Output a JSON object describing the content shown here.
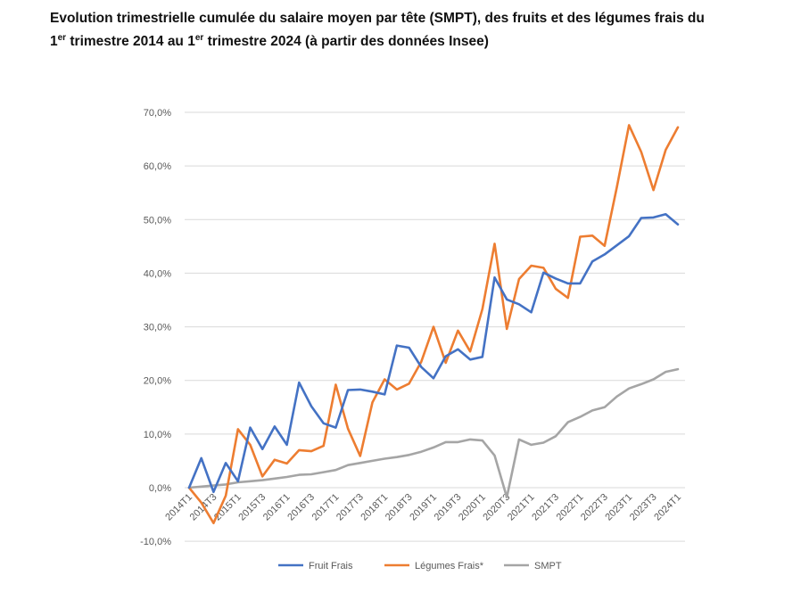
{
  "title": {
    "part1": "Evolution trimestrielle cumulée du salaire moyen par tête (SMPT), des fruits et des légumes frais du",
    "part2_1": "1",
    "sup1": "er",
    "part2_2": " trimestre 2014 au 1",
    "sup2": "er",
    "part2_3": " trimestre 2024 (à partir des données Insee)"
  },
  "chart_data": {
    "type": "line",
    "ylim": [
      -10,
      70
    ],
    "y_ticks": [
      "-10,0%",
      "0,0%",
      "10,0%",
      "20,0%",
      "30,0%",
      "40,0%",
      "50,0%",
      "60,0%",
      "70,0%"
    ],
    "x_tick_labels": [
      "2014T1",
      "2014T3",
      "2015T1",
      "2015T3",
      "2016T1",
      "2016T3",
      "2017T1",
      "2017T3",
      "2018T1",
      "2018T3",
      "2019T1",
      "2019T3",
      "2020T1",
      "2020T3",
      "2021T1",
      "2021T3",
      "2022T1",
      "2022T3",
      "2023T1",
      "2023T3",
      "2024T1"
    ],
    "categories": [
      "2014T1",
      "2014T2",
      "2014T3",
      "2014T4",
      "2015T1",
      "2015T2",
      "2015T3",
      "2015T4",
      "2016T1",
      "2016T2",
      "2016T3",
      "2016T4",
      "2017T1",
      "2017T2",
      "2017T3",
      "2017T4",
      "2018T1",
      "2018T2",
      "2018T3",
      "2018T4",
      "2019T1",
      "2019T2",
      "2019T3",
      "2019T4",
      "2020T1",
      "2020T2",
      "2020T3",
      "2020T4",
      "2021T1",
      "2021T2",
      "2021T3",
      "2021T4",
      "2022T1",
      "2022T2",
      "2022T3",
      "2022T4",
      "2023T1",
      "2023T2",
      "2023T3",
      "2023T4",
      "2024T1"
    ],
    "grid": true,
    "legend_position": "bottom",
    "series": [
      {
        "name": "Fruit Frais",
        "color": "#4472C4",
        "values": [
          0,
          5.5,
          -0.8,
          4.6,
          1.2,
          11.2,
          7.2,
          11.4,
          8,
          19.6,
          15.2,
          12,
          11.2,
          18.2,
          18.3,
          17.9,
          17.4,
          26.5,
          26.1,
          22.5,
          20.4,
          24.5,
          25.8,
          23.9,
          24.4,
          39.2,
          35.1,
          34.2,
          32.7,
          40.1,
          39,
          38.1,
          38.1,
          42.2,
          43.5,
          45.2,
          46.9,
          50.3,
          50.4,
          51,
          49.1
        ]
      },
      {
        "name": "Légumes Frais*",
        "color": "#ED7D31",
        "values": [
          0,
          -2.8,
          -6.6,
          -1.5,
          10.9,
          8,
          2.1,
          5.2,
          4.5,
          7,
          6.8,
          7.8,
          19.2,
          11,
          5.9,
          15.9,
          20.2,
          18.3,
          19.4,
          23.5,
          30,
          23.3,
          29.3,
          25.4,
          33.3,
          45.5,
          29.6,
          38.9,
          41.4,
          41,
          37.1,
          35.4,
          46.8,
          47,
          45.1,
          56,
          67.6,
          62.6,
          55.5,
          63,
          67.2
        ]
      },
      {
        "name": "SMPT",
        "color": "#A5A5A5",
        "values": [
          0,
          0.2,
          0.4,
          0.6,
          1,
          1.2,
          1.4,
          1.7,
          2,
          2.4,
          2.5,
          2.9,
          3.3,
          4.2,
          4.6,
          5,
          5.4,
          5.7,
          6.1,
          6.7,
          7.5,
          8.5,
          8.5,
          9,
          8.8,
          6,
          -1.8,
          9,
          8,
          8.4,
          9.6,
          12.2,
          13.2,
          14.4,
          15,
          17,
          18.5,
          19.3,
          20.2,
          21.6,
          22.1
        ]
      }
    ]
  }
}
